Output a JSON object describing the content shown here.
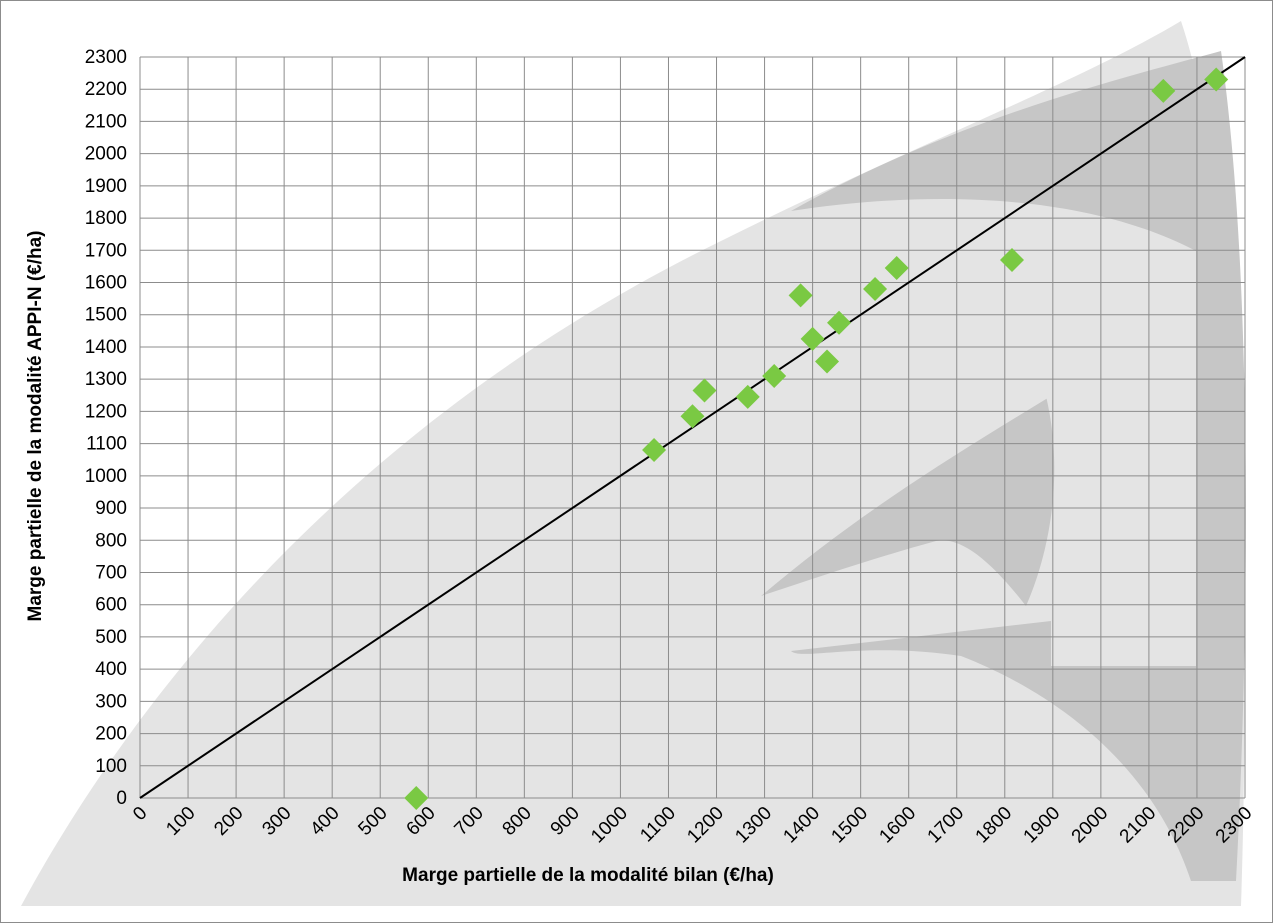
{
  "chart_data": {
    "type": "scatter",
    "title": "",
    "xlabel": "Marge partielle de la modalité bilan (€/ha)",
    "ylabel": "Marge partielle de la modalité APPI-N (€/ha)",
    "xlim": [
      0,
      2300
    ],
    "ylim": [
      0,
      2300
    ],
    "x_ticks": [
      "0",
      "100",
      "200",
      "300",
      "400",
      "500",
      "600",
      "700",
      "800",
      "900",
      "1000",
      "1100",
      "1200",
      "1300",
      "1400",
      "1500",
      "1600",
      "1700",
      "1800",
      "1900",
      "2000",
      "2100",
      "2200",
      "2300"
    ],
    "y_ticks": [
      "0",
      "100",
      "200",
      "300",
      "400",
      "500",
      "600",
      "700",
      "800",
      "900",
      "1000",
      "1100",
      "1200",
      "1300",
      "1400",
      "1500",
      "1600",
      "1700",
      "1800",
      "1900",
      "2000",
      "2100",
      "2200",
      "2300"
    ],
    "grid": true,
    "legend": "none",
    "series": [
      {
        "marker": "diamond",
        "color": "#7ac943",
        "points": [
          {
            "x": 575,
            "y": 0
          },
          {
            "x": 1070,
            "y": 1080
          },
          {
            "x": 1150,
            "y": 1185
          },
          {
            "x": 1175,
            "y": 1265
          },
          {
            "x": 1265,
            "y": 1245
          },
          {
            "x": 1320,
            "y": 1310
          },
          {
            "x": 1375,
            "y": 1560
          },
          {
            "x": 1400,
            "y": 1425
          },
          {
            "x": 1430,
            "y": 1355
          },
          {
            "x": 1455,
            "y": 1475
          },
          {
            "x": 1530,
            "y": 1580
          },
          {
            "x": 1575,
            "y": 1645
          },
          {
            "x": 1815,
            "y": 1670
          },
          {
            "x": 2130,
            "y": 2195
          },
          {
            "x": 2240,
            "y": 2230
          }
        ]
      }
    ],
    "reference_line": {
      "type": "y=x",
      "color": "#000000"
    },
    "colors": {
      "grid": "#8c8c8c",
      "watermark_light": "#e4e4e4",
      "watermark_dark": "#c6c6c6"
    }
  }
}
